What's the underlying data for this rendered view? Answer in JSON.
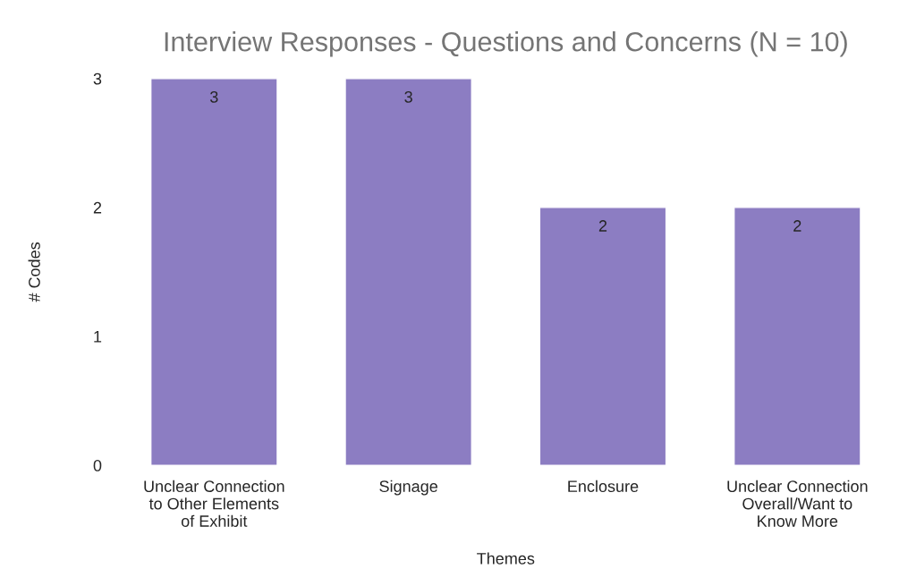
{
  "chart_data": {
    "type": "bar",
    "title": "Interview Responses - Questions and Concerns (N = 10)",
    "xlabel": "Themes",
    "ylabel": "# Codes",
    "categories": [
      "Unclear Connection\nto Other Elements\nof Exhibit",
      "Signage",
      "Enclosure",
      "Unclear Connection\nOverall/Want to\nKnow More"
    ],
    "values": [
      3,
      3,
      2,
      2
    ],
    "color": "#8c7dc2",
    "ylim": [
      0,
      3
    ],
    "yticks": [
      0,
      1,
      2,
      3
    ],
    "grid": false,
    "data_labels": true
  }
}
